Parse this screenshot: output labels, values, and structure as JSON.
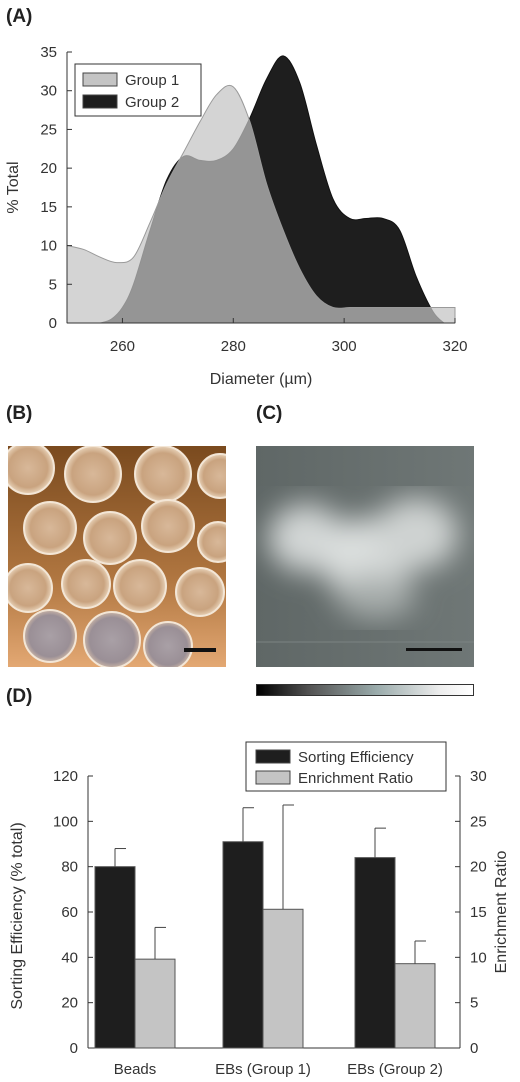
{
  "panels": {
    "a_label": "(A)",
    "b_label": "(B)",
    "c_label": "(C)",
    "d_label": "(D)"
  },
  "chart_data": [
    {
      "type": "area",
      "panel": "(A)",
      "xlabel": "Diameter (µm)",
      "ylabel": "% Total",
      "xlim": [
        250,
        320
      ],
      "ylim": [
        0,
        35
      ],
      "x_ticks": [
        "260",
        "280",
        "300",
        "320"
      ],
      "y_ticks": [
        "0",
        "5",
        "10",
        "15",
        "20",
        "25",
        "30",
        "35"
      ],
      "legend_position": "top-left",
      "series": [
        {
          "name": "Group 1",
          "color": "#c4c4c4",
          "x": [
            250,
            253,
            256,
            259,
            262,
            265,
            268,
            271,
            274,
            277,
            280,
            283,
            286,
            289,
            292,
            295,
            298,
            301,
            304,
            307,
            310,
            313,
            316,
            320
          ],
          "y": [
            10,
            9.5,
            8.5,
            7.8,
            8.5,
            13,
            18,
            22,
            26,
            29.5,
            30.5,
            26,
            18,
            12,
            7,
            3.5,
            2,
            2,
            2,
            2,
            2,
            2,
            2,
            2
          ]
        },
        {
          "name": "Group 2",
          "color": "#1e1e1e",
          "x": [
            256,
            258,
            260,
            262,
            265,
            268,
            271,
            274,
            277,
            280,
            283,
            286,
            289,
            292,
            295,
            298,
            301,
            304,
            307,
            310,
            313,
            316,
            318
          ],
          "y": [
            0,
            0.5,
            2,
            5,
            12,
            18.5,
            21.5,
            21,
            21,
            22.5,
            26.5,
            31.5,
            34.5,
            31,
            23,
            16,
            13.5,
            13.5,
            13.5,
            12,
            6,
            1.5,
            0
          ]
        }
      ]
    },
    {
      "type": "bar",
      "panel": "(D)",
      "categories": [
        "Beads",
        "EBs (Group 1)",
        "EBs (Group 2)"
      ],
      "ylabel": "Sorting Efficiency (% total)",
      "y2label": "Enrichment Ratio",
      "ylim": [
        0,
        120
      ],
      "y2lim": [
        0,
        30
      ],
      "y_ticks": [
        "0",
        "20",
        "40",
        "60",
        "80",
        "100",
        "120"
      ],
      "y2_ticks": [
        "0",
        "5",
        "10",
        "15",
        "20",
        "25",
        "30"
      ],
      "legend_position": "top-right",
      "series": [
        {
          "name": "Sorting Efficiency",
          "color": "#1e1e1e",
          "axis": "left",
          "values": [
            80,
            91,
            84
          ],
          "errors": [
            8,
            15,
            13
          ]
        },
        {
          "name": "Enrichment Ratio",
          "color": "#c4c4c4",
          "axis": "right",
          "values": [
            9.8,
            15.3,
            9.3
          ],
          "errors": [
            3.5,
            11.5,
            2.5
          ]
        }
      ]
    }
  ],
  "images": {
    "b": "micrograph-beads",
    "c": "fluorescence-embryoid-bodies"
  }
}
